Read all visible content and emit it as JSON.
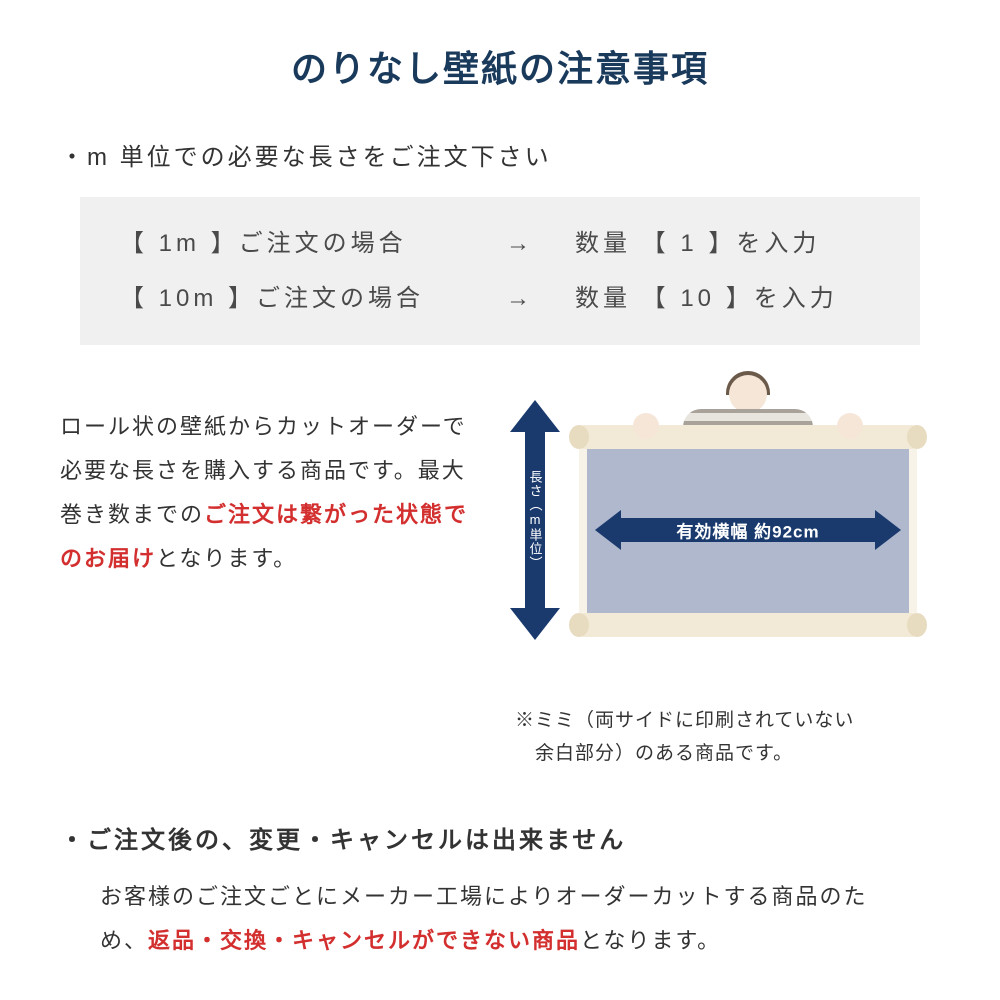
{
  "title": "のりなし壁紙の注意事項",
  "bullet1": "・m 単位での必要な長さをご注文下さい",
  "example": {
    "row1_left": "【 1m 】ご注文の場合",
    "row1_arrow": "→",
    "row1_right": "数量 【 1 】を入力",
    "row2_left": "【 10m 】ご注文の場合",
    "row2_arrow": "→",
    "row2_right": "数量 【 10 】を入力"
  },
  "desc": {
    "part1": "ロール状の壁紙からカットオーダーで必要な長さを購入する商品です。最大巻き数までの",
    "red": "ご注文は繋がった状態でのお届け",
    "part2": "となります。"
  },
  "diagram": {
    "vert_label": "長さ（m単位）",
    "horiz_label": "有効横幅 約92cm",
    "colors": {
      "arrow": "#1a3a6e",
      "sheet": "#b0b8ce",
      "roll": "#f2ead7",
      "margin": "#f7f3e8"
    }
  },
  "mimi_note": {
    "line1": "※ミミ（両サイドに印刷されていない",
    "line2": "　余白部分）のある商品です。"
  },
  "cancel": {
    "heading": "・ご注文後の、変更・キャンセルは出来ません",
    "body_part1": "お客様のご注文ごとにメーカー工場によりオーダーカットする商品のため、",
    "body_red": "返品・交換・キャンセルができない商品",
    "body_part2": "となります。"
  },
  "colors": {
    "title": "#1a3a5c",
    "text": "#333333",
    "red": "#d32f2f",
    "example_bg": "#f0f0f0",
    "background": "#ffffff"
  },
  "typography": {
    "title_fontsize": 36,
    "body_fontsize": 22,
    "bullet_fontsize": 24,
    "note_fontsize": 19
  }
}
